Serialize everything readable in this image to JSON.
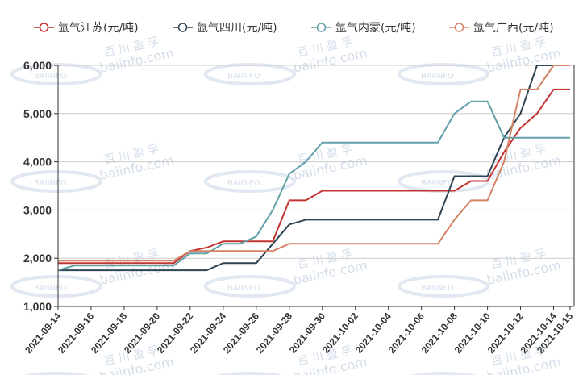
{
  "chart_data": {
    "type": "line",
    "title": "",
    "xlabel": "",
    "ylabel": "",
    "ylim": [
      1000,
      6000
    ],
    "yticks": [
      1000,
      2000,
      3000,
      4000,
      5000,
      6000
    ],
    "ytick_labels": [
      "1,000",
      "2,000",
      "3,000",
      "4,000",
      "5,000",
      "6,000"
    ],
    "grid": true,
    "legend_position": "top",
    "x": [
      "2021-09-14",
      "2021-09-15",
      "2021-09-16",
      "2021-09-17",
      "2021-09-18",
      "2021-09-19",
      "2021-09-20",
      "2021-09-21",
      "2021-09-22",
      "2021-09-23",
      "2021-09-24",
      "2021-09-25",
      "2021-09-26",
      "2021-09-27",
      "2021-09-28",
      "2021-09-29",
      "2021-09-30",
      "2021-10-01",
      "2021-10-02",
      "2021-10-03",
      "2021-10-04",
      "2021-10-05",
      "2021-10-06",
      "2021-10-07",
      "2021-10-08",
      "2021-10-09",
      "2021-10-10",
      "2021-10-11",
      "2021-10-12",
      "2021-10-13",
      "2021-10-14",
      "2021-10-15"
    ],
    "xtick_labels": [
      "2021-09-14",
      "2021-09-16",
      "2021-09-18",
      "2021-09-20",
      "2021-09-22",
      "2021-09-24",
      "2021-09-26",
      "2021-09-28",
      "2021-09-30",
      "2021-10-02",
      "2021-10-04",
      "2021-10-06",
      "2021-10-08",
      "2021-10-10",
      "2021-10-12",
      "2021-10-14",
      "2021-10-15"
    ],
    "series": [
      {
        "name": "氩气江苏(元/吨)",
        "color": "#c23531",
        "values": [
          1900,
          1900,
          1900,
          1900,
          1900,
          1900,
          1900,
          1900,
          2150,
          2220,
          2350,
          2350,
          2350,
          2350,
          3200,
          3200,
          3400,
          3400,
          3400,
          3400,
          3400,
          3400,
          3400,
          3400,
          3400,
          3600,
          3600,
          4200,
          4700,
          5000,
          5500,
          5500
        ]
      },
      {
        "name": "氩气四川(元/吨)",
        "color": "#2f4554",
        "values": [
          1750,
          1750,
          1750,
          1750,
          1750,
          1750,
          1750,
          1750,
          1750,
          1750,
          1900,
          1900,
          1900,
          2300,
          2700,
          2800,
          2800,
          2800,
          2800,
          2800,
          2800,
          2800,
          2800,
          2800,
          3700,
          3700,
          3700,
          4500,
          5000,
          6000,
          6000,
          6000
        ]
      },
      {
        "name": "氩气内蒙(元/吨)",
        "color": "#61a0a8",
        "values": [
          1750,
          1850,
          1850,
          1850,
          1850,
          1850,
          1850,
          1850,
          2100,
          2100,
          2300,
          2300,
          2450,
          3000,
          3750,
          4000,
          4400,
          4400,
          4400,
          4400,
          4400,
          4400,
          4400,
          4400,
          5000,
          5250,
          5250,
          4500,
          4500,
          4500,
          4500,
          4500
        ]
      },
      {
        "name": "氩气广西(元/吨)",
        "color": "#d48265",
        "values": [
          1950,
          1950,
          1950,
          1950,
          1950,
          1950,
          1950,
          1950,
          2150,
          2150,
          2150,
          2150,
          2150,
          2150,
          2300,
          2300,
          2300,
          2300,
          2300,
          2300,
          2300,
          2300,
          2300,
          2300,
          2800,
          3200,
          3200,
          4000,
          5500,
          5500,
          6000,
          6000
        ]
      }
    ]
  },
  "legend": {
    "items": [
      {
        "label": "氩气江苏(元/吨)",
        "color": "#c23531"
      },
      {
        "label": "氩气四川(元/吨)",
        "color": "#2f4554"
      },
      {
        "label": "氩气内蒙(元/吨)",
        "color": "#61a0a8"
      },
      {
        "label": "氩气广西(元/吨)",
        "color": "#d48265"
      }
    ]
  },
  "watermark": {
    "cn": "百 川 盈 孚",
    "url": "baiinfo.com",
    "logo": "BAIINFO"
  },
  "colors": {
    "axis": "#333333",
    "grid": "#cccccc",
    "watermark": "#c9d6e6"
  }
}
